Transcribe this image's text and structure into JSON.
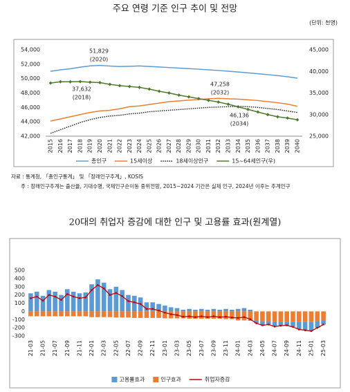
{
  "chart_data": [
    {
      "type": "line",
      "title": "주요 연령 기준 인구 추이 및 전망",
      "subtitle": "(단위: 천명)",
      "categories": [
        "2015",
        "2016",
        "2017",
        "2018",
        "2019",
        "2020",
        "2021",
        "2022",
        "2023",
        "2024",
        "2025",
        "2026",
        "2027",
        "2028",
        "2029",
        "2030",
        "2031",
        "2032",
        "2033",
        "2034",
        "2035",
        "2036",
        "2037",
        "2038",
        "2039",
        "2040"
      ],
      "series": [
        {
          "name": "총인구",
          "color": "#5b9bd5",
          "values": [
            51015,
            51218,
            51362,
            51585,
            51765,
            51829,
            51745,
            51673,
            51713,
            51751,
            51684,
            51609,
            51534,
            51459,
            51385,
            51306,
            51220,
            51126,
            51025,
            50916,
            50800,
            50680,
            50550,
            50410,
            50260,
            50060
          ]
        },
        {
          "name": "15세이상",
          "color": "#ed7d31",
          "values": [
            44100,
            44400,
            44700,
            45000,
            45300,
            45500,
            45600,
            45800,
            46100,
            46200,
            46400,
            46600,
            46800,
            46900,
            47000,
            47100,
            47200,
            47258,
            47200,
            47150,
            47050,
            46950,
            46800,
            46650,
            46450,
            46150
          ]
        },
        {
          "name": "18세이상인구",
          "color": "#222222",
          "style": "dotted",
          "values": [
            42400,
            42900,
            43400,
            43900,
            44300,
            44600,
            44800,
            44900,
            45100,
            45200,
            45400,
            45500,
            45600,
            45700,
            45800,
            45900,
            46000,
            46050,
            46100,
            46136,
            46100,
            46000,
            45850,
            45700,
            45500,
            45300
          ]
        },
        {
          "name": "15~64세인구(우)",
          "color": "#4e7a2c",
          "axis": "y2",
          "marker": "diamond",
          "values": [
            37300,
            37600,
            37600,
            37632,
            37500,
            37400,
            37000,
            36700,
            36500,
            36300,
            35900,
            35400,
            35000,
            34500,
            34100,
            33700,
            33300,
            32900,
            32400,
            31800,
            31200,
            30600,
            30000,
            29500,
            29200,
            28800
          ]
        }
      ],
      "ylim": [
        42000,
        54000
      ],
      "yticks": [
        {
          "value": 42000,
          "label": "42,000"
        },
        {
          "value": 44000,
          "label": "44,000"
        },
        {
          "value": 46000,
          "label": "46,000"
        },
        {
          "value": 48000,
          "label": "48,000"
        },
        {
          "value": 50000,
          "label": "50,000"
        },
        {
          "value": 52000,
          "label": "52,000"
        },
        {
          "value": 54000,
          "label": "54,000"
        }
      ],
      "y2lim": [
        25000,
        45000
      ],
      "y2ticks": [
        {
          "value": 25000,
          "label": "25,000"
        },
        {
          "value": 30000,
          "label": "30,000"
        },
        {
          "value": 35000,
          "label": "35,000"
        },
        {
          "value": 40000,
          "label": "40,000"
        },
        {
          "value": 45000,
          "label": "45,000"
        }
      ],
      "annotations": [
        {
          "text": "51,829",
          "sub": "(2020)"
        },
        {
          "text": "37,632",
          "sub": "(2018)"
        },
        {
          "text": "47,258",
          "sub": "(2032)"
        },
        {
          "text": "46,136",
          "sub": "(2034)"
        }
      ],
      "notes": [
        "자료 : 통계청, 「총인구통계」 및 「장래인구추계」, KOSIS",
        "주 : 장래인구추계는 출산율, 기대수명, 국제인구순이동 중위전망, 2015~2024 기간은 실제 인구, 2024년 이후는 추계인구"
      ],
      "grid": false
    },
    {
      "type": "bar",
      "stacked": true,
      "title": "20대의 취업자 증감에 대한 인구 및 고용률 효과(원계열)",
      "categories": [
        "21-03",
        null,
        "21-05",
        null,
        "21-07",
        null,
        "21-09",
        null,
        "21-11",
        null,
        "22-01",
        null,
        "22-03",
        null,
        "22-05",
        null,
        "22-07",
        null,
        "22-09",
        null,
        "22-11",
        null,
        "23-01",
        null,
        "23-03",
        null,
        "23-05",
        null,
        "23-07",
        null,
        "23-09",
        null,
        "23-11",
        null,
        "24-01",
        null,
        "24-03",
        null,
        "24-05",
        null,
        "24-07",
        null,
        "24-09",
        null,
        "24-11",
        null,
        "25-01",
        null,
        "25-03"
      ],
      "series": [
        {
          "name": "고용률효과",
          "color": "#5b9bd5",
          "values": [
            220,
            240,
            190,
            260,
            240,
            200,
            270,
            240,
            220,
            230,
            330,
            390,
            350,
            270,
            300,
            260,
            200,
            190,
            170,
            110,
            110,
            90,
            70,
            50,
            40,
            20,
            30,
            20,
            30,
            20,
            30,
            20,
            30,
            20,
            30,
            40,
            20,
            -30,
            -50,
            -40,
            -60,
            -50,
            -40,
            -60,
            -90,
            -100,
            -110,
            -80,
            -50
          ]
        },
        {
          "name": "인구효과",
          "color": "#ed7d31",
          "values": [
            -60,
            -60,
            -60,
            -60,
            -60,
            -60,
            -60,
            -60,
            -60,
            -60,
            -70,
            -70,
            -70,
            -70,
            -75,
            -75,
            -75,
            -80,
            -80,
            -80,
            -80,
            -80,
            -85,
            -85,
            -85,
            -85,
            -90,
            -90,
            -90,
            -90,
            -90,
            -90,
            -95,
            -95,
            -110,
            -110,
            -115,
            -115,
            -120,
            -120,
            -125,
            -125,
            -130,
            -130,
            -130,
            -130,
            -130,
            -120,
            -110
          ]
        },
        {
          "name": "취업자증감",
          "color": "#c00000",
          "type": "line",
          "values": [
            160,
            180,
            130,
            200,
            180,
            140,
            210,
            180,
            160,
            170,
            260,
            320,
            280,
            200,
            225,
            185,
            125,
            110,
            90,
            30,
            30,
            10,
            -15,
            -35,
            -45,
            -65,
            -60,
            -70,
            -60,
            -70,
            -60,
            -70,
            -65,
            -75,
            -80,
            -70,
            -95,
            -145,
            -170,
            -160,
            -185,
            -175,
            -170,
            -190,
            -220,
            -230,
            -240,
            -200,
            -160
          ]
        }
      ],
      "ylim": [
        -300,
        500
      ],
      "yticks": [
        -300,
        -200,
        -100,
        0,
        100,
        200,
        300,
        400,
        500
      ],
      "grid": false
    }
  ]
}
